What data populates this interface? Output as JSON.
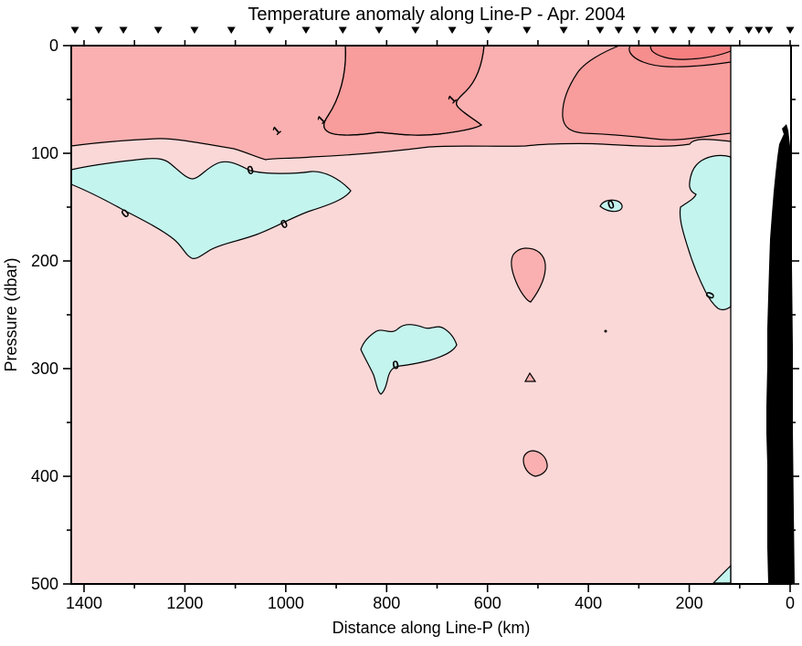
{
  "page": {
    "background": "#FFFFFF"
  },
  "chart_data": {
    "type": "contour",
    "title": "Temperature anomaly along Line-P - Apr. 2004",
    "xlabel": "Distance along Line-P (km)",
    "ylabel": "Pressure (dbar)",
    "x_axis": {
      "direction": "reversed",
      "range_km": [
        1430,
        -2
      ],
      "major_ticks": [
        1400,
        1200,
        1000,
        800,
        600,
        400,
        200,
        0
      ],
      "minor_ticks": [
        1300,
        1100,
        900,
        700,
        500,
        300,
        100
      ],
      "top_ticks": [
        1400,
        1300,
        1200,
        1100,
        1000,
        900,
        800,
        700,
        600,
        500,
        400,
        300,
        200,
        100,
        0
      ]
    },
    "y_axis": {
      "direction": "inverted",
      "range_dbar": [
        0,
        500
      ],
      "major_ticks": [
        0,
        100,
        200,
        300,
        400,
        500
      ],
      "minor_ticks": [
        50,
        150,
        250,
        350,
        450
      ]
    },
    "contour_levels": [
      0,
      0.5,
      1,
      1.5,
      2
    ],
    "labeled_levels": [
      0,
      1
    ],
    "contour_labels": [
      {
        "text": "0",
        "km": 1318,
        "dbar": 156,
        "rot": -40
      },
      {
        "text": "0",
        "km": 1070,
        "dbar": 116,
        "rot": -15
      },
      {
        "text": "0",
        "km": 1003,
        "dbar": 166,
        "rot": -25
      },
      {
        "text": "0",
        "km": 782,
        "dbar": 297,
        "rot": -10
      },
      {
        "text": "0",
        "km": 355,
        "dbar": 148,
        "rot": -20
      },
      {
        "text": "0",
        "km": 158,
        "dbar": 232,
        "rot": -65
      },
      {
        "text": "1",
        "km": 1018,
        "dbar": 79,
        "rot": -40
      },
      {
        "text": "1",
        "km": 929,
        "dbar": 69,
        "rot": -45
      },
      {
        "text": "1",
        "km": 670,
        "dbar": 50,
        "rot": -45
      }
    ],
    "station_markers_km": [
      1418,
      1371,
      1322,
      1253,
      1181,
      1108,
      1032,
      960,
      887,
      815,
      743,
      670,
      598,
      522,
      449,
      377,
      340,
      304,
      268,
      232,
      196,
      156,
      120,
      82,
      62,
      42,
      0
    ],
    "palette": {
      "negative_anomaly": "#C4F4EE",
      "band_0_05": "#FBD8D8",
      "band_05_1": "#FAB0B0",
      "band_1_15": "#F89C9C",
      "band_15_2": "#F78E8E",
      "band_2_plus": "#F68080",
      "bathymetry": "#000000",
      "contour_line": "#000000",
      "axis": "#000000"
    }
  }
}
